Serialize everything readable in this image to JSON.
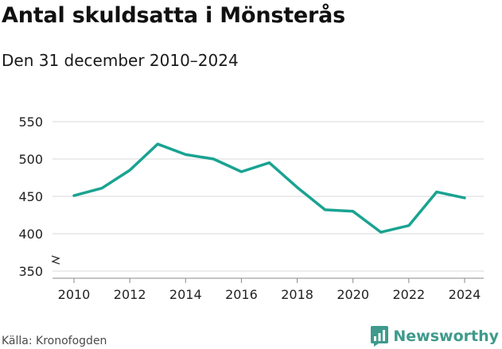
{
  "title": "Antal skuldsatta i Mönsterås",
  "subtitle": "Den 31 december 2010–2024",
  "source": "Källa: Kronofogden",
  "brand": "Newsworthy",
  "colors": {
    "line": "#1aa391",
    "grid": "#d9d9d9",
    "brand": "#3f9a8c"
  },
  "chart_data": {
    "type": "line",
    "title": "Antal skuldsatta i Mönsterås",
    "subtitle": "Den 31 december 2010–2024",
    "xlabel": "",
    "ylabel": "",
    "x": [
      2010,
      2011,
      2012,
      2013,
      2014,
      2015,
      2016,
      2017,
      2018,
      2019,
      2020,
      2021,
      2022,
      2023,
      2024
    ],
    "values": [
      451,
      461,
      485,
      520,
      506,
      500,
      483,
      495,
      462,
      432,
      430,
      402,
      411,
      456,
      448
    ],
    "ylim": [
      350,
      550
    ],
    "yticks": [
      350,
      400,
      450,
      500,
      550
    ],
    "xticks": [
      2010,
      2012,
      2014,
      2016,
      2018,
      2020,
      2022,
      2024
    ],
    "y_axis_break": true,
    "grid": true,
    "legend": "none"
  }
}
